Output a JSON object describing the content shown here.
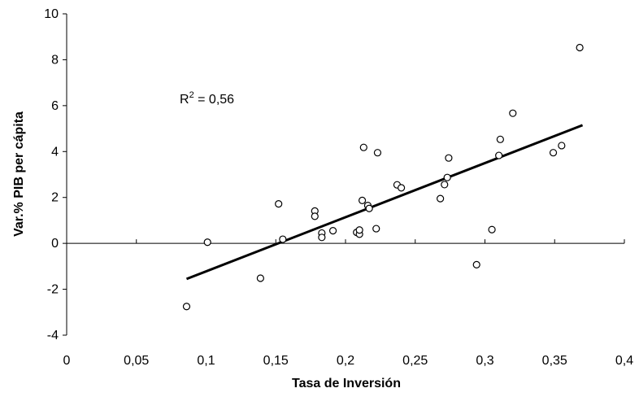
{
  "chart_data": {
    "type": "scatter",
    "title": "",
    "xlabel": "Tasa de Inversión",
    "ylabel": "Var.% PIB per cápita",
    "xlim": [
      0,
      0.4
    ],
    "ylim": [
      -4,
      10
    ],
    "x_ticks": [
      "0",
      "0,05",
      "0,1",
      "0,15",
      "0,2",
      "0,25",
      "0,3",
      "0,35",
      "0,4"
    ],
    "y_ticks": [
      "-4",
      "-2",
      "0",
      "2",
      "4",
      "6",
      "8",
      "10"
    ],
    "grid": false,
    "legend": "none",
    "series": [
      {
        "x": [
          0.086,
          0.101,
          0.139,
          0.152,
          0.155,
          0.178,
          0.178,
          0.183,
          0.183,
          0.191,
          0.208,
          0.21,
          0.21,
          0.212,
          0.213,
          0.216,
          0.217,
          0.222,
          0.223,
          0.237,
          0.24,
          0.268,
          0.271,
          0.273,
          0.274,
          0.294,
          0.305,
          0.31,
          0.311,
          0.32,
          0.349,
          0.355,
          0.368
        ],
        "y": [
          -2.75,
          0.05,
          -1.52,
          1.72,
          0.18,
          1.41,
          1.18,
          0.45,
          0.26,
          0.55,
          0.48,
          0.4,
          0.58,
          1.87,
          4.18,
          1.65,
          1.52,
          0.64,
          3.95,
          2.55,
          2.42,
          1.95,
          2.56,
          2.87,
          3.72,
          -0.93,
          0.6,
          3.83,
          4.53,
          5.67,
          3.95,
          4.26,
          8.53
        ]
      }
    ],
    "trendline": {
      "x": [
        0.086,
        0.37
      ],
      "y": [
        -1.55,
        5.15
      ]
    },
    "annotation": {
      "text": "R",
      "superscript": "2",
      "suffix": " = 0,56"
    },
    "colors": {
      "axis": "#000000",
      "marker_stroke": "#000000",
      "marker_fill": "#ffffff",
      "trendline": "#000000"
    }
  }
}
